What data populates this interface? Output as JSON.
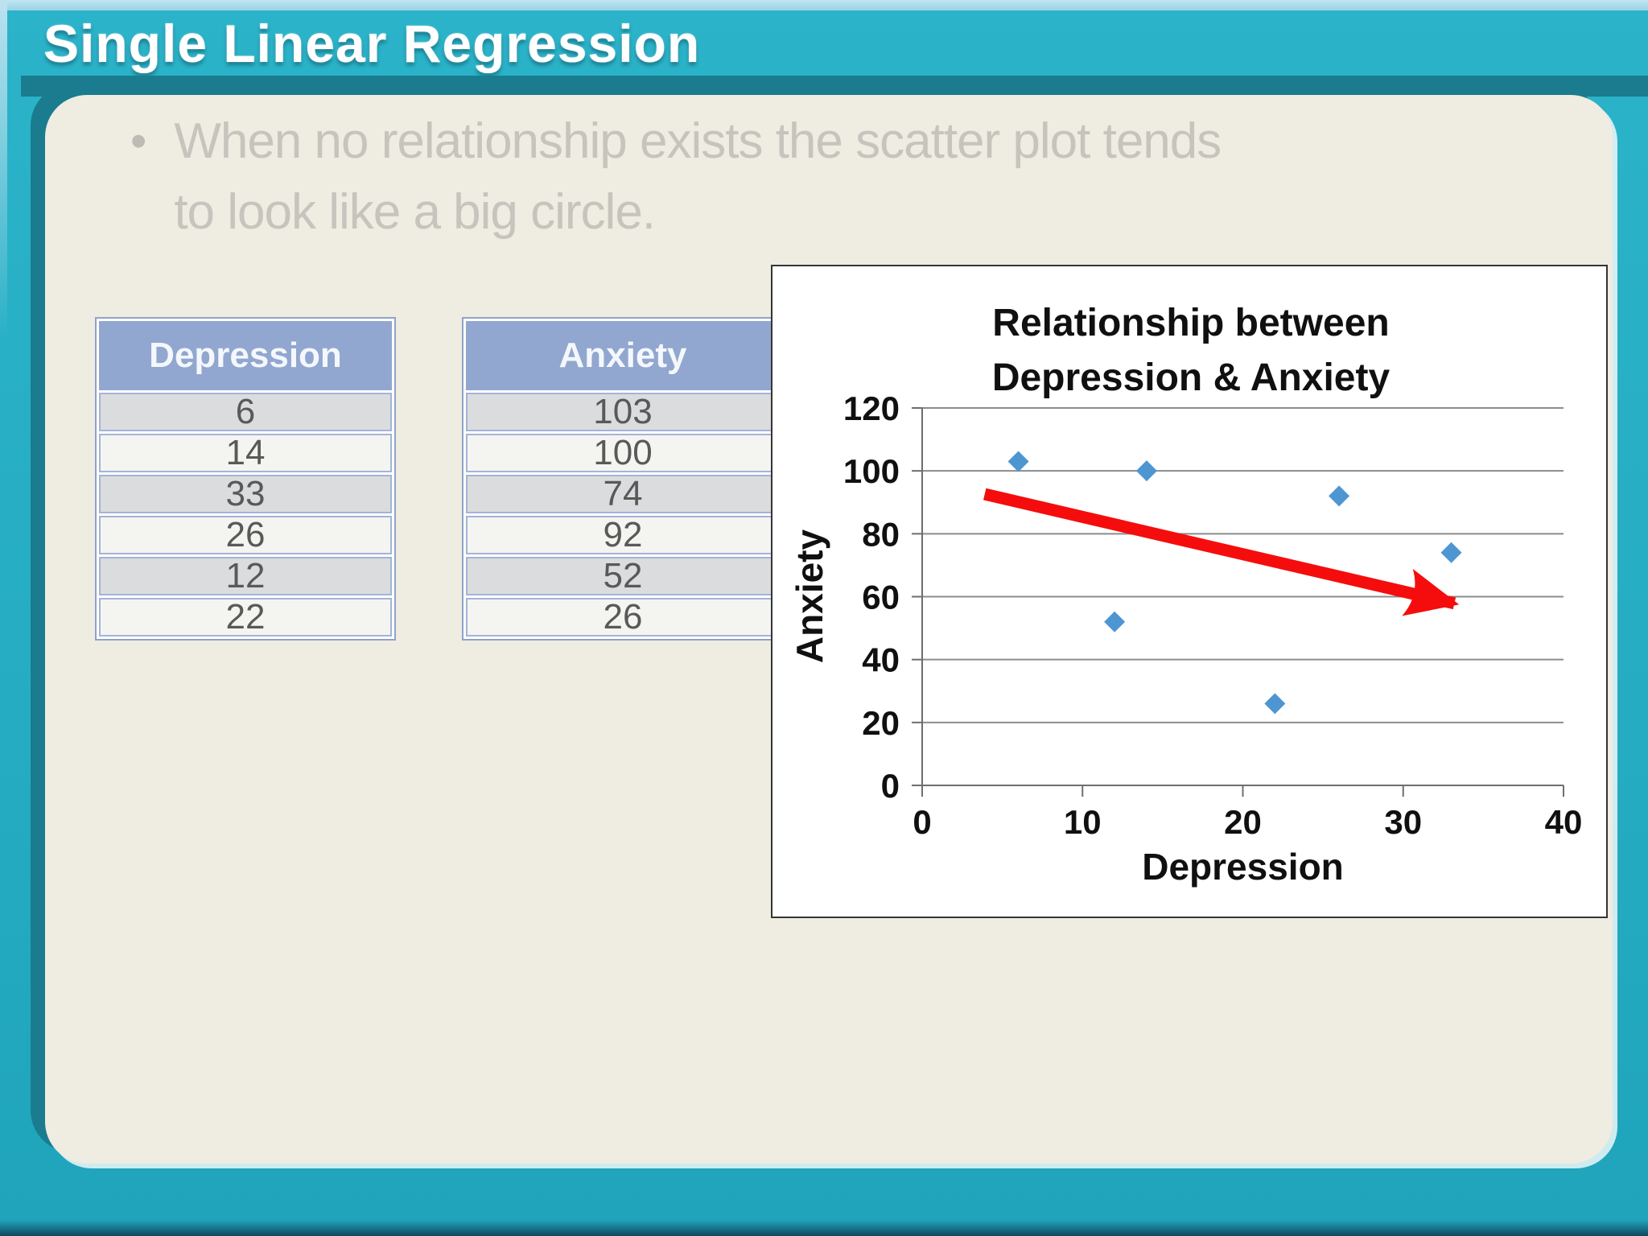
{
  "slide": {
    "title": "Single Linear Regression",
    "bullet_char": "•",
    "bullet_lines": [
      "When no relationship exists the scatter plot tends",
      "to look like a big circle."
    ]
  },
  "tables": [
    {
      "id": "depression",
      "header": "Depression",
      "values": [
        "6",
        "14",
        "33",
        "26",
        "12",
        "22"
      ]
    },
    {
      "id": "anxiety",
      "header": "Anxiety",
      "values": [
        "103",
        "100",
        "74",
        "92",
        "52",
        "26"
      ]
    }
  ],
  "chart_data": {
    "type": "scatter",
    "title_lines": [
      "Relationship between",
      "Depression & Anxiety"
    ],
    "xlabel": "Depression",
    "ylabel": "Anxiety",
    "xlim": [
      0,
      40
    ],
    "ylim": [
      0,
      120
    ],
    "x_ticks": [
      0,
      10,
      20,
      30,
      40
    ],
    "y_ticks": [
      0,
      20,
      40,
      60,
      80,
      100,
      120
    ],
    "grid": "horizontal gridlines at every y tick",
    "legend": "none",
    "points": [
      {
        "x": 6,
        "y": 103
      },
      {
        "x": 14,
        "y": 100
      },
      {
        "x": 33,
        "y": 74
      },
      {
        "x": 26,
        "y": 92
      },
      {
        "x": 12,
        "y": 52
      },
      {
        "x": 22,
        "y": 26
      }
    ],
    "trend_arrow": {
      "x1": 3.9,
      "y1": 92.6,
      "x2": 34.7,
      "y2": 59.4
    },
    "colors": {
      "point": "#4E96D2",
      "arrow": "#F50D0D",
      "gridline": "#8C8C8C",
      "axis": "#6E6E6E",
      "text": "#101010"
    }
  },
  "colors": {
    "frame_teal": "#25AEC4",
    "frame_teal_dark": "#1A7C8E",
    "top_strip": "#A6D7E8",
    "content_bg": "#EFECE1",
    "table_header_bg": "#92A7CF",
    "table_header_text": "#F4F7FC",
    "table_row_odd": "#DBDCDD",
    "table_row_even": "#F4F4F1",
    "table_border": "#8EA3CC",
    "cell_text": "#595959",
    "bullet_text": "#C6C5BD",
    "title_text": "#FFFFFF"
  }
}
